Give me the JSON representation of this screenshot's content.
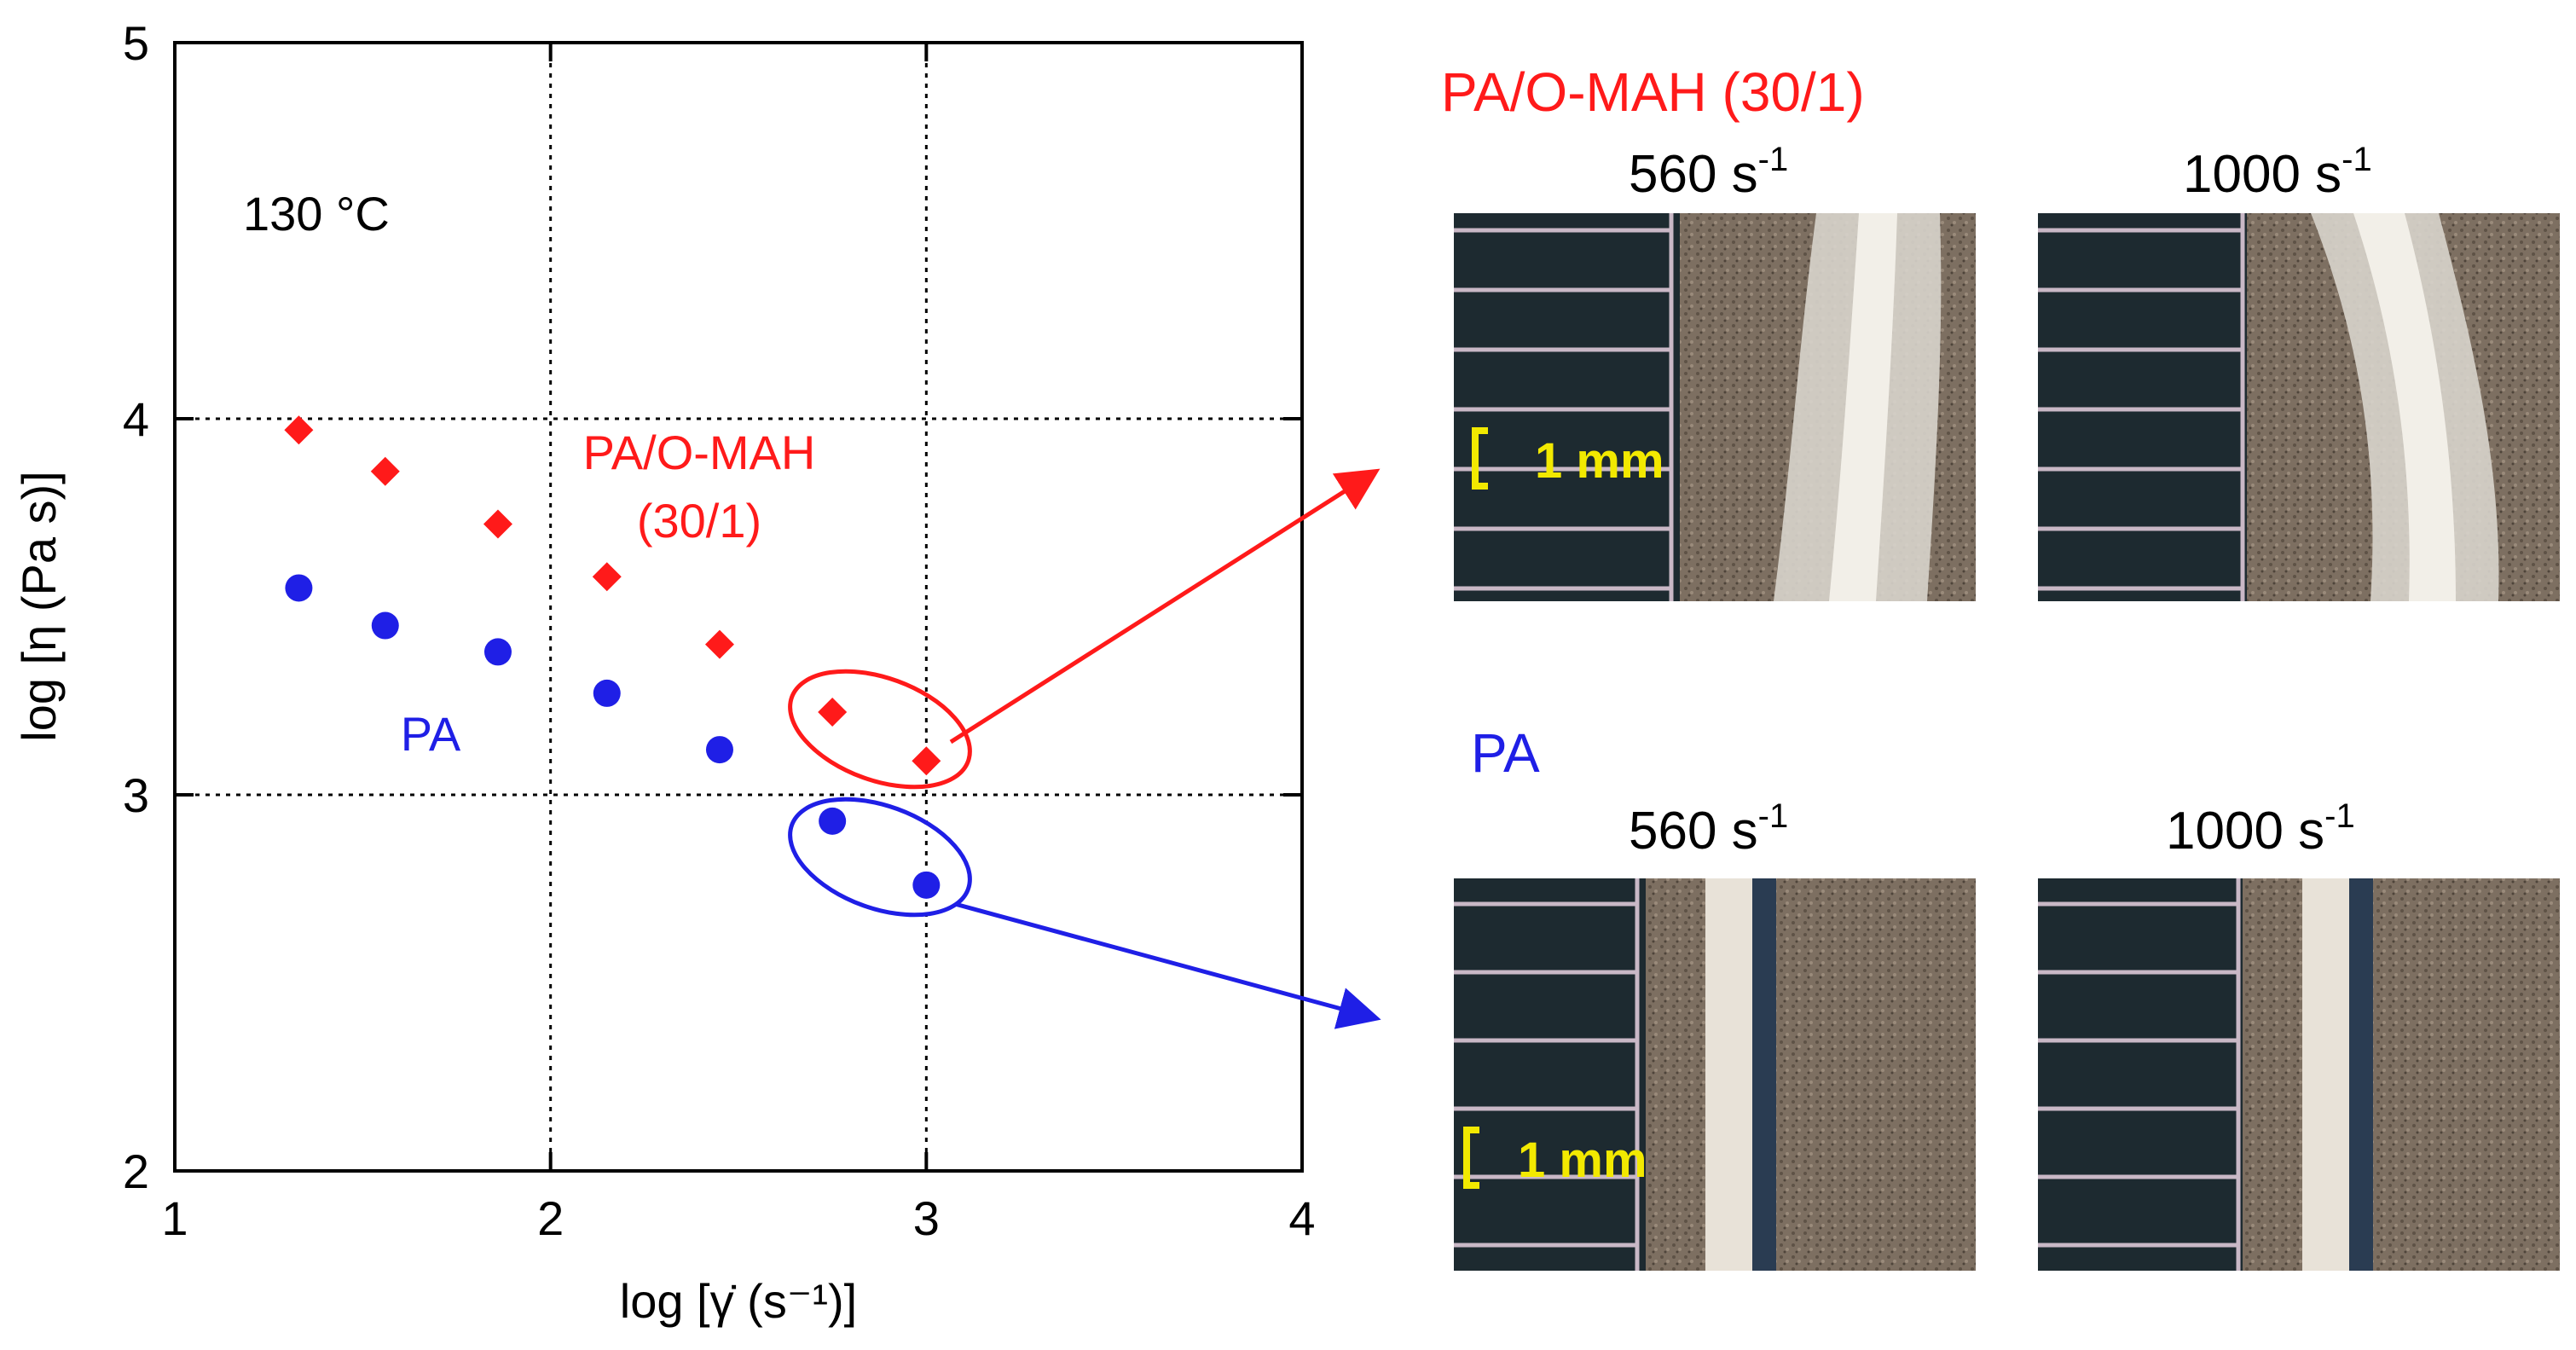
{
  "colors": {
    "pa_omah": "#ff1a1a",
    "pa": "#1f1fe6",
    "scale_bar": "#f2e900",
    "grid": "#000000"
  },
  "chart_data": {
    "type": "scatter",
    "title": "",
    "annotation_temperature": "130 °C",
    "xlabel": "log [γ̇ (s⁻¹)]",
    "ylabel": "log [η (Pa s)]",
    "xlim": [
      1,
      4
    ],
    "ylim": [
      2,
      5
    ],
    "xticks": [
      1,
      2,
      3,
      4
    ],
    "yticks": [
      2,
      3,
      4,
      5
    ],
    "grid": true,
    "series": [
      {
        "name": "PA/O-MAH (30/1)",
        "label_lines": [
          "PA/O-MAH",
          "(30/1)"
        ],
        "marker": "diamond",
        "color": "#ff1a1a",
        "x": [
          1.33,
          1.56,
          1.86,
          2.15,
          2.45,
          2.75,
          3.0
        ],
        "y": [
          3.97,
          3.86,
          3.72,
          3.58,
          3.4,
          3.22,
          3.09
        ]
      },
      {
        "name": "PA",
        "label_lines": [
          "PA"
        ],
        "marker": "circle",
        "color": "#1f1fe6",
        "x": [
          1.33,
          1.56,
          1.86,
          2.15,
          2.45,
          2.75,
          3.0
        ],
        "y": [
          3.55,
          3.45,
          3.38,
          3.27,
          3.12,
          2.93,
          2.76
        ]
      }
    ]
  },
  "micrographs": {
    "pa_omah": {
      "heading": "PA/O-MAH (30/1)",
      "rates": [
        "560 s-1",
        "1000 s-1"
      ],
      "rate_values": [
        "560 s",
        "1000 s"
      ],
      "rate_exponent": "-1",
      "scale_bar": "1 mm"
    },
    "pa": {
      "heading": "PA",
      "rate_values": [
        "560 s",
        "1000 s"
      ],
      "rate_exponent": "-1",
      "scale_bar": "1 mm"
    }
  }
}
